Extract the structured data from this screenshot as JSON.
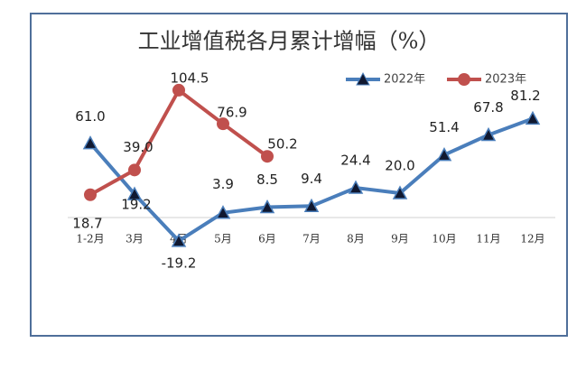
{
  "chart_data": {
    "type": "line",
    "title": "工业增值税各月累计增幅（%）",
    "categories": [
      "1-2月",
      "3月",
      "4月",
      "5月",
      "6月",
      "7月",
      "8月",
      "9月",
      "10月",
      "11月",
      "12月"
    ],
    "series": [
      {
        "name": "2022年",
        "color": "#4a7ebb",
        "marker": "triangle",
        "values": [
          61.0,
          19.2,
          -19.2,
          3.9,
          8.5,
          9.4,
          24.4,
          20.0,
          51.4,
          67.8,
          81.2
        ],
        "value_labels": [
          "61.0",
          "19.2",
          "-19.2",
          "3.9",
          "8.5",
          "9.4",
          "24.4",
          "20.0",
          "51.4",
          "67.8",
          "81.2"
        ]
      },
      {
        "name": "2023年",
        "color": "#c0504d",
        "marker": "circle",
        "values": [
          18.7,
          39.0,
          104.5,
          76.9,
          50.2,
          null,
          null,
          null,
          null,
          null,
          null
        ],
        "value_labels": [
          "18.7",
          "39.0",
          "104.5",
          "76.9",
          "50.2",
          null,
          null,
          null,
          null,
          null,
          null
        ]
      }
    ],
    "ylim": [
      -20,
      110
    ],
    "legend": "top-right"
  }
}
